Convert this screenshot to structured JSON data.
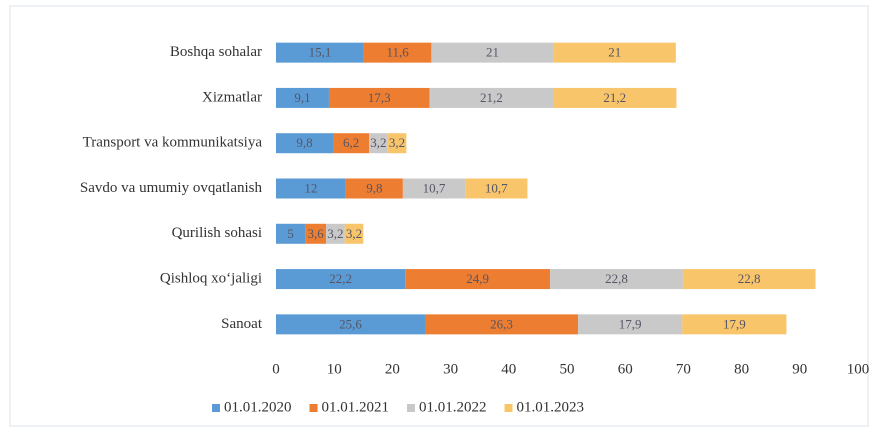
{
  "chart_data": {
    "type": "stacked-bar-horizontal",
    "categories": [
      "Boshqa sohalar",
      "Xizmatlar",
      "Transport va kommunikatsiya",
      "Savdo va umumiy ovqatlanish",
      "Qurilish sohasi",
      "Qishloq xo‘jaligi",
      "Sanoat"
    ],
    "series": [
      {
        "name": "01.01.2020",
        "color": "#5b9bd5",
        "values": [
          15.1,
          9.1,
          9.8,
          12,
          5,
          22.2,
          25.6
        ],
        "value_labels": [
          "15,1",
          "9,1",
          "9,8",
          "12",
          "5",
          "22,2",
          "25,6"
        ]
      },
      {
        "name": "01.01.2021",
        "color": "#ed7d31",
        "values": [
          11.6,
          17.3,
          6.2,
          9.8,
          3.6,
          24.9,
          26.3
        ],
        "value_labels": [
          "11,6",
          "17,3",
          "6,2",
          "9,8",
          "3,6",
          "24,9",
          "26,3"
        ]
      },
      {
        "name": "01.01.2022",
        "color": "#c9c9c9",
        "values": [
          21,
          21.2,
          3.2,
          10.7,
          3.2,
          22.8,
          17.9
        ],
        "value_labels": [
          "21",
          "21,2",
          "3,2",
          "10,7",
          "3,2",
          "22,8",
          "17,9"
        ]
      },
      {
        "name": "01.01.2023",
        "color": "#f9c56b",
        "values": [
          21,
          21.2,
          3.2,
          10.7,
          3.2,
          22.8,
          17.9
        ],
        "value_labels": [
          "21",
          "21,2",
          "3,2",
          "10,7",
          "3,2",
          "22,8",
          "17,9"
        ]
      }
    ],
    "xlim": [
      0,
      100
    ],
    "xticks": [
      0,
      10,
      20,
      30,
      40,
      50,
      60,
      70,
      80,
      90,
      100
    ],
    "legend": "bottom"
  }
}
